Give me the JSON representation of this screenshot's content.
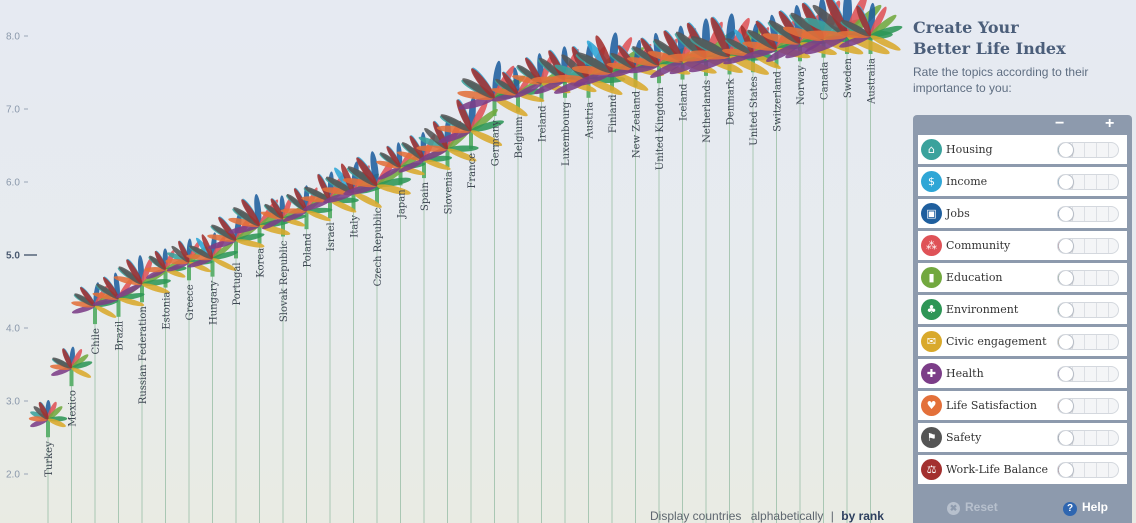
{
  "title_line1": "Create Your",
  "title_line2": "Better Life Index",
  "subtitle": "Rate the topics according to their importance to you:",
  "panel": {
    "minus_label": "−",
    "plus_label": "+"
  },
  "topics": [
    {
      "label": "Housing",
      "color": "#3aa29c",
      "icon": "house-icon",
      "glyph": "⌂"
    },
    {
      "label": "Income",
      "color": "#2fa6d6",
      "icon": "money-icon",
      "glyph": "$"
    },
    {
      "label": "Jobs",
      "color": "#1f5f9e",
      "icon": "briefcase-icon",
      "glyph": "▣"
    },
    {
      "label": "Community",
      "color": "#df5257",
      "icon": "people-icon",
      "glyph": "⁂"
    },
    {
      "label": "Education",
      "color": "#72a83f",
      "icon": "book-icon",
      "glyph": "▮"
    },
    {
      "label": "Environment",
      "color": "#2e9656",
      "icon": "tree-icon",
      "glyph": "♣"
    },
    {
      "label": "Civic engagement",
      "color": "#d9a92b",
      "icon": "envelope-icon",
      "glyph": "✉"
    },
    {
      "label": "Health",
      "color": "#7c3d88",
      "icon": "health-cross-icon",
      "glyph": "✚"
    },
    {
      "label": "Life Satisfaction",
      "color": "#e3703a",
      "icon": "heart-icon",
      "glyph": "♥"
    },
    {
      "label": "Safety",
      "color": "#555555",
      "icon": "running-person-icon",
      "glyph": "⚑"
    },
    {
      "label": "Work-Life Balance",
      "color": "#a3302f",
      "icon": "scales-icon",
      "glyph": "⚖"
    }
  ],
  "footer": {
    "reset_label": "Reset",
    "help_label": "Help"
  },
  "display": {
    "prefix": "Display countries",
    "alphabetically": "alphabetically",
    "separator": "|",
    "by_rank": "by rank"
  },
  "chart_data": {
    "type": "scatter",
    "ylim": [
      1.8,
      8.3
    ],
    "yticks": [
      "2.0",
      "3.0",
      "4.0",
      "5.0",
      "6.0",
      "7.0",
      "8.0"
    ],
    "highlight_tick": "5.0",
    "countries": [
      "Turkey",
      "Mexico",
      "Chile",
      "Brazil",
      "Russian Federation",
      "Estonia",
      "Greece",
      "Hungary",
      "Portugal",
      "Korea",
      "Slovak Republic",
      "Poland",
      "Israel",
      "Italy",
      "Czech Republic",
      "Japan",
      "Spain",
      "Slovenia",
      "France",
      "Germany",
      "Belgium",
      "Ireland",
      "Luxembourg",
      "Austria",
      "Finland",
      "New Zealand",
      "United Kingdom",
      "Iceland",
      "Netherlands",
      "Denmark",
      "United States",
      "Switzerland",
      "Norway",
      "Canada",
      "Sweden",
      "Australia"
    ],
    "values": [
      2.75,
      3.45,
      4.3,
      4.4,
      4.6,
      4.8,
      4.9,
      4.95,
      5.2,
      5.4,
      5.5,
      5.6,
      5.75,
      5.85,
      5.95,
      6.2,
      6.3,
      6.45,
      6.7,
      7.15,
      7.2,
      7.35,
      7.4,
      7.4,
      7.5,
      7.55,
      7.6,
      7.65,
      7.7,
      7.72,
      7.75,
      7.82,
      7.9,
      7.95,
      8.0,
      8.0
    ],
    "petal_colors": [
      "#3aa29c",
      "#2fa6d6",
      "#1f5f9e",
      "#df5257",
      "#72a83f",
      "#2e9656",
      "#d9a92b",
      "#7c3d88",
      "#e3703a",
      "#555555",
      "#a3302f"
    ]
  }
}
